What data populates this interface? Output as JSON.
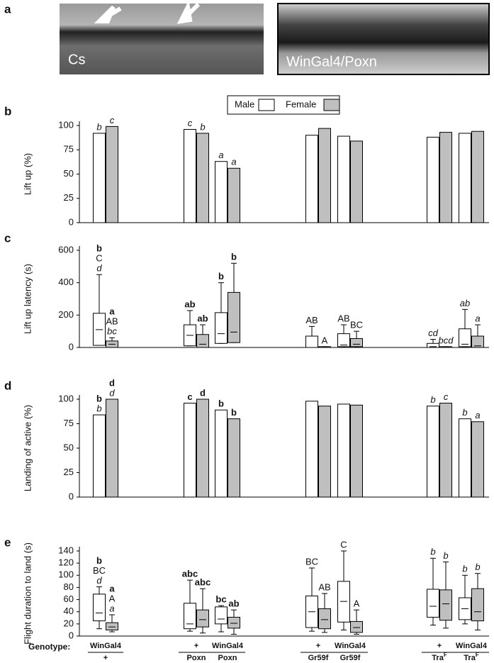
{
  "panel_labels": [
    "a",
    "b",
    "c",
    "d",
    "e"
  ],
  "images": [
    {
      "caption": "Cs"
    },
    {
      "caption": "WinGal4/Poxn"
    }
  ],
  "genotype": {
    "label": "Genotype:",
    "items": [
      {
        "top": "WinGal4",
        "bottom": "+"
      },
      {
        "top": "+",
        "bottom": "Poxn"
      },
      {
        "top": "WinGal4",
        "bottom": "Poxn"
      },
      {
        "top": "+",
        "bottom": "Gr59f"
      },
      {
        "top": "WinGal4",
        "bottom": "Gr59f"
      },
      {
        "top": "+",
        "bottom": "Tra",
        "bottom_sup": "F"
      },
      {
        "top": "WinGal4",
        "bottom": "Tra",
        "bottom_sup": "F"
      }
    ]
  },
  "chart_data": [
    {
      "type": "bar",
      "ylabel": "Lift up (%)",
      "ylim": [
        0,
        100
      ],
      "yticks": [
        0,
        25,
        50,
        75,
        100
      ],
      "legend": "top-center",
      "series": [
        {
          "name": "Male",
          "color": "#ffffff",
          "values": [
            92,
            96,
            63,
            90,
            89,
            88,
            92
          ],
          "annotations": [
            [
              {
                "text": "b",
                "style": "italic"
              }
            ],
            [
              {
                "text": "c",
                "style": "italic"
              }
            ],
            [
              {
                "text": "a",
                "style": "italic"
              }
            ],
            null,
            null,
            null,
            null
          ]
        },
        {
          "name": "Female",
          "color": "#bfbfbf",
          "values": [
            99,
            92,
            56,
            97,
            84,
            93,
            94
          ],
          "annotations": [
            [
              {
                "text": "c",
                "style": "italic"
              }
            ],
            [
              {
                "text": "b",
                "style": "italic"
              }
            ],
            [
              {
                "text": "a",
                "style": "italic"
              }
            ],
            null,
            null,
            null,
            null
          ]
        }
      ]
    },
    {
      "type": "box",
      "ylabel": "Lift up latency (s)",
      "ylim": [
        0,
        600
      ],
      "yticks": [
        0,
        200,
        400,
        600
      ],
      "series": [
        {
          "color": "#ffffff",
          "whisker_low": [
            13,
            10,
            25,
            0,
            5,
            0,
            5
          ],
          "q1": [
            13,
            10,
            25,
            0,
            5,
            0,
            5
          ],
          "median": [
            110,
            75,
            85,
            0,
            15,
            5,
            20
          ],
          "q3": [
            211,
            140,
            215,
            70,
            85,
            25,
            115
          ],
          "whisker_high": [
            450,
            228,
            400,
            130,
            140,
            50,
            235
          ],
          "annotations": [
            [
              {
                "text": "b",
                "style": "bold"
              },
              {
                "text": "C",
                "style": "normal"
              },
              {
                "text": "d",
                "style": "italic"
              }
            ],
            [
              {
                "text": "ab",
                "style": "bold"
              }
            ],
            [
              {
                "text": "b",
                "style": "bold"
              }
            ],
            [
              {
                "text": "AB",
                "style": "normal"
              }
            ],
            [
              {
                "text": "AB",
                "style": "normal"
              }
            ],
            [
              {
                "text": "cd",
                "style": "italic"
              }
            ],
            [
              {
                "text": "ab",
                "style": "italic"
              }
            ]
          ]
        },
        {
          "color": "#bfbfbf",
          "whisker_low": [
            0,
            0,
            30,
            0,
            5,
            0,
            0
          ],
          "q1": [
            0,
            0,
            30,
            0,
            5,
            0,
            0
          ],
          "median": [
            20,
            20,
            95,
            0,
            20,
            0,
            10
          ],
          "q3": [
            40,
            80,
            340,
            5,
            55,
            5,
            70
          ],
          "whisker_high": [
            60,
            140,
            520,
            5,
            100,
            5,
            140
          ],
          "annotations": [
            [
              {
                "text": "a",
                "style": "bold"
              },
              {
                "text": "AB",
                "style": "normal"
              },
              {
                "text": "bc",
                "style": "italic"
              }
            ],
            [
              {
                "text": "ab",
                "style": "bold"
              }
            ],
            [
              {
                "text": "b",
                "style": "bold"
              }
            ],
            [
              {
                "text": "A",
                "style": "normal"
              }
            ],
            [
              {
                "text": "BC",
                "style": "normal"
              }
            ],
            [
              {
                "text": "bcd",
                "style": "italic"
              }
            ],
            [
              {
                "text": "a",
                "style": "italic"
              }
            ]
          ]
        }
      ]
    },
    {
      "type": "bar",
      "ylabel": "Landing of active (%)",
      "ylim": [
        0,
        100
      ],
      "yticks": [
        0,
        25,
        50,
        75,
        100
      ],
      "series": [
        {
          "color": "#ffffff",
          "values": [
            84,
            96,
            89,
            98,
            95,
            93,
            80
          ],
          "annotations": [
            [
              {
                "text": "b",
                "style": "bold"
              },
              {
                "text": "b",
                "style": "italic"
              }
            ],
            [
              {
                "text": "c",
                "style": "bold"
              }
            ],
            [
              {
                "text": "b",
                "style": "bold"
              }
            ],
            null,
            null,
            [
              {
                "text": "b",
                "style": "italic"
              }
            ],
            [
              {
                "text": "b",
                "style": "italic"
              }
            ]
          ]
        },
        {
          "color": "#bfbfbf",
          "values": [
            100,
            100,
            80,
            93,
            94,
            96,
            77
          ],
          "annotations": [
            [
              {
                "text": "d",
                "style": "bold"
              },
              {
                "text": "d",
                "style": "italic"
              }
            ],
            [
              {
                "text": "d",
                "style": "bold"
              }
            ],
            [
              {
                "text": "b",
                "style": "bold"
              }
            ],
            null,
            null,
            [
              {
                "text": "c",
                "style": "italic"
              }
            ],
            [
              {
                "text": "a",
                "style": "italic"
              }
            ]
          ]
        }
      ]
    },
    {
      "type": "box",
      "ylabel": "Flight duration to land (s)",
      "ylim": [
        0,
        140
      ],
      "yticks": [
        0,
        20,
        40,
        60,
        80,
        100,
        120,
        140
      ],
      "series": [
        {
          "color": "#ffffff",
          "whisker_low": [
            12,
            8,
            7,
            8,
            10,
            18,
            20
          ],
          "q1": [
            25,
            12,
            20,
            14,
            23,
            31,
            27
          ],
          "median": [
            38,
            20,
            28,
            40,
            57,
            49,
            45
          ],
          "q3": [
            69,
            54,
            48,
            66,
            90,
            77,
            63
          ],
          "whisker_high": [
            81,
            92,
            50,
            112,
            140,
            128,
            100
          ],
          "annotations": [
            [
              {
                "text": "b",
                "style": "bold"
              },
              {
                "text": "BC",
                "style": "normal"
              },
              {
                "text": "d",
                "style": "italic"
              }
            ],
            [
              {
                "text": "abc",
                "style": "bold"
              }
            ],
            [
              {
                "text": "bc",
                "style": "bold"
              }
            ],
            [
              {
                "text": "BC",
                "style": "normal"
              }
            ],
            [
              {
                "text": "C",
                "style": "normal"
              }
            ],
            [
              {
                "text": "b",
                "style": "italic"
              }
            ],
            [
              {
                "text": "b",
                "style": "italic"
              }
            ]
          ]
        },
        {
          "color": "#bfbfbf",
          "whisker_low": [
            7,
            5,
            3,
            6,
            3,
            13,
            10
          ],
          "q1": [
            10,
            15,
            13,
            12,
            6,
            26,
            25
          ],
          "median": [
            15,
            27,
            21,
            27,
            14,
            53,
            40
          ],
          "q3": [
            22,
            43,
            31,
            45,
            24,
            76,
            78
          ],
          "whisker_high": [
            35,
            78,
            43,
            70,
            43,
            122,
            103
          ],
          "annotations": [
            [
              {
                "text": "a",
                "style": "bold"
              },
              {
                "text": "A",
                "style": "normal"
              },
              {
                "text": "a",
                "style": "italic"
              }
            ],
            [
              {
                "text": "abc",
                "style": "bold"
              }
            ],
            [
              {
                "text": "ab",
                "style": "bold"
              }
            ],
            [
              {
                "text": "AB",
                "style": "normal"
              }
            ],
            [
              {
                "text": "A",
                "style": "normal"
              }
            ],
            [
              {
                "text": "b",
                "style": "italic"
              }
            ],
            [
              {
                "text": "b",
                "style": "italic"
              }
            ]
          ]
        }
      ]
    }
  ]
}
